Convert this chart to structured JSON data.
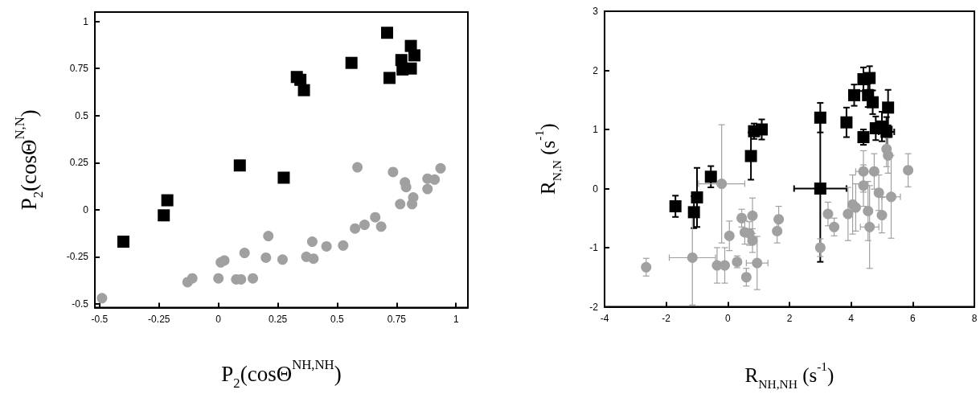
{
  "chart_data": [
    {
      "type": "scatter",
      "xlabel": "P$_{2}$(cosΘ$^{NH,NH}$)",
      "ylabel": "P$_{2}$(cosΘ$^{N,N}$)",
      "xlim": [
        -0.52,
        1.05
      ],
      "ylim": [
        -0.52,
        1.05
      ],
      "xticks": [
        -0.5,
        -0.25,
        0,
        0.25,
        0.5,
        0.75,
        1
      ],
      "yticks": [
        -0.5,
        -0.25,
        0,
        0.25,
        0.5,
        0.75,
        1
      ],
      "series": [
        {
          "marker": "square",
          "color": "#000000",
          "x": [
            -0.4,
            -0.23,
            -0.215,
            0.09,
            0.275,
            0.33,
            0.345,
            0.36,
            0.56,
            0.71,
            0.72,
            0.77,
            0.775,
            0.81,
            0.825,
            0.81
          ],
          "values": [
            -0.17,
            -0.03,
            0.05,
            0.235,
            0.17,
            0.705,
            0.69,
            0.635,
            0.78,
            0.94,
            0.7,
            0.795,
            0.745,
            0.87,
            0.82,
            0.75
          ]
        },
        {
          "marker": "circle",
          "color": "#a0a0a0",
          "x": [
            -0.49,
            -0.13,
            -0.11,
            0,
            0.01,
            0.025,
            0.075,
            0.095,
            0.11,
            0.145,
            0.2,
            0.21,
            0.27,
            0.37,
            0.4,
            0.395,
            0.455,
            0.525,
            0.575,
            0.585,
            0.615,
            0.66,
            0.685,
            0.735,
            0.765,
            0.785,
            0.79,
            0.82,
            0.815,
            0.88,
            0.88,
            0.91,
            0.935
          ],
          "values": [
            -0.47,
            -0.385,
            -0.365,
            -0.365,
            -0.28,
            -0.27,
            -0.37,
            -0.37,
            -0.23,
            -0.365,
            -0.255,
            -0.14,
            -0.265,
            -0.25,
            -0.26,
            -0.17,
            -0.195,
            -0.19,
            -0.1,
            0.225,
            -0.08,
            -0.04,
            -0.09,
            0.2,
            0.03,
            0.145,
            0.12,
            0.065,
            0.03,
            0.11,
            0.165,
            0.16,
            0.22
          ]
        }
      ]
    },
    {
      "type": "scatter",
      "xlabel": "R$_{NH,NH}$ (s$^{-1}$)",
      "ylabel": "R$_{N,N}$ (s$^{-1}$)",
      "xlim": [
        -4,
        8
      ],
      "ylim": [
        -2,
        3
      ],
      "xticks": [
        -4,
        -2,
        0,
        2,
        4,
        6,
        8
      ],
      "yticks": [
        -2,
        -1,
        0,
        1,
        2,
        3
      ],
      "series": [
        {
          "marker": "square",
          "color": "#000000",
          "x": [
            -1.7,
            -1.1,
            -1.0,
            -0.55,
            0.75,
            0.85,
            1.1,
            3.0,
            3.0,
            3.85,
            4.1,
            4.4,
            4.4,
            4.6,
            4.55,
            4.7,
            4.8,
            5.0,
            5.15,
            5.2
          ],
          "values": [
            -0.3,
            -0.4,
            -0.15,
            0.2,
            0.55,
            0.97,
            1.0,
            1.2,
            0,
            1.12,
            1.58,
            0.87,
            1.85,
            1.87,
            1.58,
            1.46,
            1.02,
            1.05,
            0.96,
            1.37
          ],
          "errors": [
            0.18,
            0.27,
            0.5,
            0.18,
            0.4,
            0.13,
            0.17,
            0.25,
            1.24,
            0.25,
            0.18,
            0.13,
            0.2,
            0.2,
            0.2,
            0.2,
            0.2,
            0.25,
            0.25,
            0.3
          ],
          "xerrors": [
            null,
            null,
            null,
            null,
            null,
            null,
            null,
            null,
            0.85,
            null,
            null,
            null,
            null,
            null,
            null,
            null,
            null,
            null,
            0.25,
            null
          ]
        },
        {
          "marker": "circle",
          "color": "#a0a0a0",
          "x": [
            -2.65,
            -1.15,
            -0.2,
            -0.35,
            -0.1,
            0.05,
            0.3,
            0.45,
            0.8,
            0.55,
            0.7,
            0.8,
            0.6,
            0.95,
            1.65,
            1.6,
            3.0,
            3.25,
            3.45,
            3.9,
            4.05,
            4.15,
            4.4,
            4.4,
            4.55,
            4.6,
            4.75,
            4.9,
            5.0,
            5.15,
            5.2,
            5.3,
            5.85
          ],
          "values": [
            -1.33,
            -1.17,
            0.08,
            -1.3,
            -1.3,
            -0.8,
            -1.24,
            -0.5,
            -0.46,
            -0.74,
            -0.76,
            -0.88,
            -1.5,
            -1.26,
            -0.52,
            -0.72,
            -1.0,
            -0.43,
            -0.65,
            -0.43,
            -0.27,
            -0.32,
            0.05,
            0.29,
            -0.38,
            -0.65,
            0.29,
            -0.07,
            -0.45,
            0.67,
            0.56,
            -0.14,
            0.31
          ],
          "errors": [
            0.15,
            0.8,
            1.0,
            0.3,
            0.3,
            0.25,
            0.1,
            0.15,
            0.3,
            0.2,
            0.2,
            0.2,
            0.15,
            0.45,
            0.22,
            0.2,
            0.15,
            0.2,
            0.15,
            0.45,
            0.5,
            0.4,
            0.35,
            0.35,
            0.5,
            0.7,
            0.3,
            0.3,
            0.3,
            0.3,
            0.3,
            0.7,
            0.28
          ],
          "xerrors": [
            null,
            0.75,
            0.75,
            null,
            null,
            null,
            null,
            null,
            null,
            null,
            null,
            null,
            null,
            0.35,
            null,
            null,
            null,
            null,
            null,
            null,
            null,
            null,
            null,
            0.25,
            null,
            0.3,
            null,
            null,
            null,
            null,
            null,
            0.3,
            null
          ]
        }
      ]
    }
  ]
}
